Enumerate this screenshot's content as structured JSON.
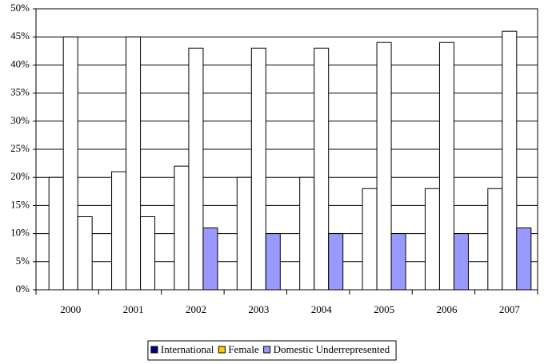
{
  "chart_data": {
    "type": "bar",
    "categories": [
      "2000",
      "2001",
      "2002",
      "2003",
      "2004",
      "2005",
      "2006",
      "2007"
    ],
    "series": [
      {
        "name": "International",
        "color": "#000080",
        "bar_fill": [
          "#ffffff",
          "#ffffff",
          "#ffffff",
          "#ffffff",
          "#ffffff",
          "#ffffff",
          "#ffffff",
          "#ffffff"
        ],
        "values": [
          20,
          21,
          22,
          20,
          20,
          18,
          18,
          18
        ]
      },
      {
        "name": "Female",
        "color": "#ffcc00",
        "bar_fill": [
          "#ffffff",
          "#ffffff",
          "#ffffff",
          "#ffffff",
          "#ffffff",
          "#ffffff",
          "#ffffff",
          "#ffffff"
        ],
        "values": [
          45,
          45,
          43,
          43,
          43,
          44,
          44,
          46
        ]
      },
      {
        "name": "Domestic Underrepresented",
        "color": "#9999ff",
        "bar_fill": [
          "#ffffff",
          "#ffffff",
          "#9999ff",
          "#9999ff",
          "#9999ff",
          "#9999ff",
          "#9999ff",
          "#9999ff"
        ],
        "values": [
          13,
          13,
          11,
          10,
          10,
          10,
          10,
          11
        ]
      }
    ],
    "ylim": [
      0,
      50
    ],
    "yticks": [
      {
        "value": 0,
        "label": "0%"
      },
      {
        "value": 5,
        "label": "5%"
      },
      {
        "value": 10,
        "label": "10%"
      },
      {
        "value": 15,
        "label": "15%"
      },
      {
        "value": 20,
        "label": "20%"
      },
      {
        "value": 25,
        "label": "25%"
      },
      {
        "value": 30,
        "label": "30%"
      },
      {
        "value": 35,
        "label": "35%"
      },
      {
        "value": 40,
        "label": "40%"
      },
      {
        "value": 45,
        "label": "45%"
      },
      {
        "value": 50,
        "label": "50%"
      }
    ],
    "grid": true,
    "legend": "bottom"
  }
}
